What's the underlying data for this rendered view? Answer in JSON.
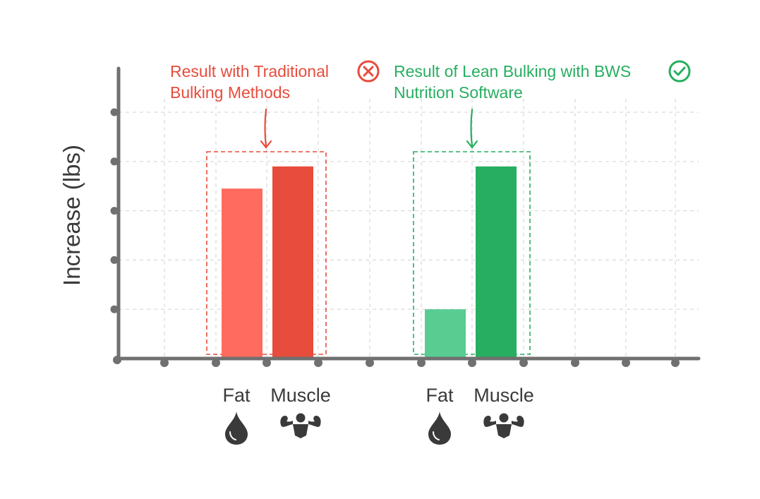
{
  "chart_data": {
    "type": "bar",
    "ylabel": "Increase (lbs)",
    "ylim": [
      0,
      5
    ],
    "grid": true,
    "groups": [
      {
        "annotation": [
          "Result with Traditional",
          "Bulking Methods"
        ],
        "status_icon": "x-circle-icon",
        "categories": [
          "Fat",
          "Muscle"
        ],
        "values": [
          3.45,
          3.9
        ]
      },
      {
        "annotation": [
          "Result of Lean Bulking with BWS",
          "Nutrition Software"
        ],
        "status_icon": "check-circle-icon",
        "categories": [
          "Fat",
          "Muscle"
        ],
        "values": [
          1.0,
          3.9
        ]
      }
    ],
    "category_icons": {
      "Fat": "fat-drop-icon",
      "Muscle": "flexing-muscle-icon"
    }
  },
  "colors": {
    "axis": "#707070",
    "grid": "#d9d9d9",
    "traditional_fat": "#ff6b5e",
    "traditional_muscle": "#e74c3c",
    "traditional_accent": "#e74c3c",
    "lean_fat": "#58cc91",
    "lean_muscle": "#27ae60",
    "lean_accent": "#27ae60",
    "category_text": "#3a3a3a",
    "icon": "#3a3a3a"
  }
}
